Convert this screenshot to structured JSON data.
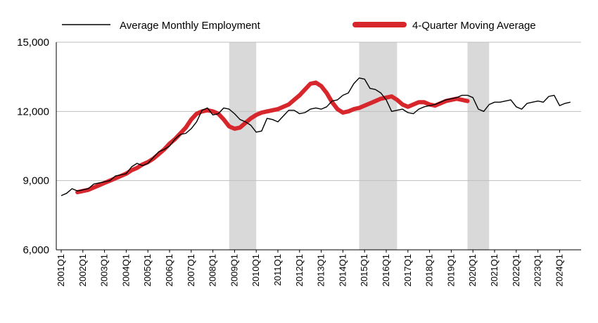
{
  "chart_data": {
    "type": "line",
    "title": "",
    "xlabel": "",
    "ylabel": "",
    "ylim": [
      6000,
      15000
    ],
    "yticks": [
      6000,
      9000,
      12000,
      15000
    ],
    "ytick_labels": [
      "6,000",
      "9,000",
      "12,000",
      "15,000"
    ],
    "grid": "horizontal",
    "legend_position": "top",
    "xtick_labels": [
      "2001Q1",
      "2002Q1",
      "2003Q1",
      "2004Q1",
      "2005Q1",
      "2006Q1",
      "2007Q1",
      "2008Q1",
      "2009Q1",
      "2010Q1",
      "2011Q1",
      "2012Q1",
      "2013Q1",
      "2014Q1",
      "2015Q1",
      "2016Q1",
      "2017Q1",
      "2018Q1",
      "2019Q1",
      "2020Q1",
      "2021Q1",
      "2022Q1",
      "2023Q1",
      "2024Q1"
    ],
    "recessions": [
      {
        "start": "2008Q4",
        "end": "2010Q1"
      },
      {
        "start": "2014Q4",
        "end": "2016Q3"
      },
      {
        "start": "2019Q4",
        "end": "2020Q4"
      }
    ],
    "colors": {
      "monthly": "#000000",
      "moving_average": "#d7262c",
      "recession": "#d9d9d9",
      "grid": "#bfbfbf"
    },
    "series": [
      {
        "name": "Average Monthly Employment",
        "start": "2001Q1",
        "values": [
          8350,
          8450,
          8650,
          8550,
          8600,
          8650,
          8850,
          8900,
          8950,
          9000,
          9200,
          9250,
          9300,
          9600,
          9750,
          9650,
          9750,
          10000,
          10250,
          10350,
          10500,
          10800,
          11000,
          11050,
          11250,
          11550,
          12050,
          12150,
          11850,
          11900,
          12150,
          12100,
          11900,
          11650,
          11550,
          11400,
          11100,
          11150,
          11700,
          11650,
          11550,
          11800,
          12050,
          12050,
          11900,
          11950,
          12100,
          12150,
          12100,
          12200,
          12450,
          12500,
          12700,
          12800,
          13200,
          13450,
          13400,
          13000,
          12950,
          12800,
          12500,
          12000,
          12050,
          12100,
          11950,
          11900,
          12100,
          12200,
          12250,
          12300,
          12400,
          12500,
          12550,
          12600,
          12700,
          12700,
          12600,
          12100,
          12000,
          12300,
          12400,
          12400,
          12450,
          12500,
          12200,
          12100,
          12350,
          12400,
          12450,
          12400,
          12650,
          12700,
          12250,
          12350,
          12400
        ]
      },
      {
        "name": "4-Quarter Moving Average",
        "start": "2001Q4",
        "values": [
          8500,
          8550,
          8600,
          8700,
          8800,
          8900,
          9000,
          9100,
          9200,
          9300,
          9450,
          9550,
          9700,
          9800,
          9950,
          10150,
          10350,
          10600,
          10800,
          11050,
          11300,
          11650,
          11900,
          12000,
          12050,
          12000,
          11900,
          11650,
          11350,
          11250,
          11300,
          11500,
          11700,
          11850,
          11950,
          12000,
          12050,
          12100,
          12200,
          12300,
          12500,
          12700,
          12950,
          13200,
          13250,
          13100,
          12800,
          12400,
          12100,
          11950,
          12000,
          12100,
          12150,
          12250,
          12350,
          12450,
          12550,
          12600,
          12650,
          12500,
          12300,
          12200,
          12300,
          12400,
          12400,
          12300,
          12250,
          12350,
          12450,
          12500,
          12550,
          12500,
          12450
        ]
      }
    ]
  }
}
